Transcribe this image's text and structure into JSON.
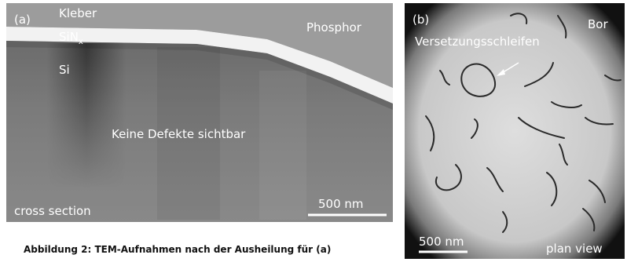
{
  "panel_a": {
    "label": "(a)",
    "layer_top": "Kleber",
    "layer_mid": "SiN",
    "layer_mid_sub": "x",
    "layer_bottom": "Si",
    "dopant": "Phosphor",
    "note": "Keine Defekte sichtbar",
    "scale": "500 nm",
    "view": "cross section"
  },
  "panel_b": {
    "label": "(b)",
    "dopant": "Bor",
    "note": "Versetzungsschleifen",
    "scale": "500 nm",
    "view": "plan view"
  },
  "caption": "Abbildung 2: TEM-Aufnahmen nach der Ausheilung für (a)"
}
